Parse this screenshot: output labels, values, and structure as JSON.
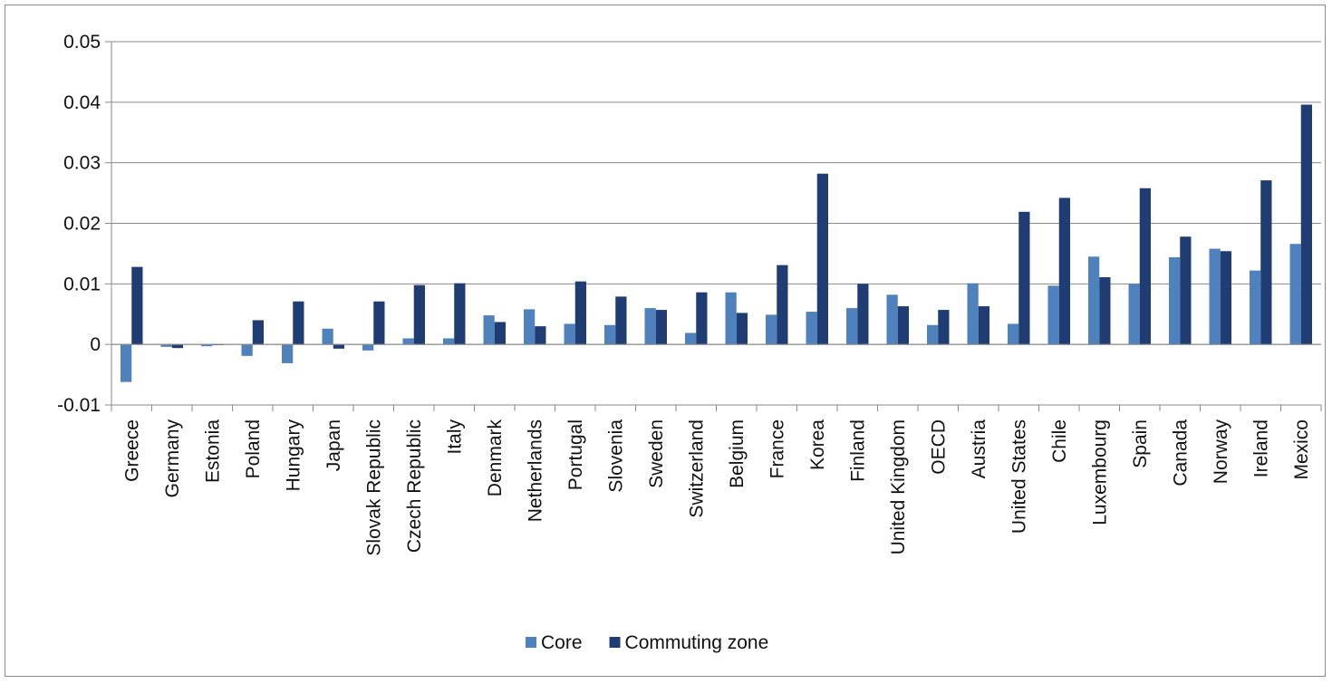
{
  "chart_data": {
    "type": "bar",
    "title": "",
    "xlabel": "",
    "ylabel": "",
    "ylim": [
      -0.01,
      0.05
    ],
    "yticks": [
      "0.05",
      "0.04",
      "0.03",
      "0.02",
      "0.01",
      "0",
      "-0.01"
    ],
    "ytick_values": [
      0.05,
      0.04,
      0.03,
      0.02,
      0.01,
      0,
      -0.01
    ],
    "grid": true,
    "legend_position": "bottom",
    "categories": [
      "Greece",
      "Germany",
      "Estonia",
      "Poland",
      "Hungary",
      "Japan",
      "Slovak Republic",
      "Czech Republic",
      "Italy",
      "Denmark",
      "Netherlands",
      "Portugal",
      "Slovenia",
      "Sweden",
      "Switzerland",
      "Belgium",
      "France",
      "Korea",
      "Finland",
      "United Kingdom",
      "OECD",
      "Austria",
      "United States",
      "Chile",
      "Luxembourg",
      "Spain",
      "Canada",
      "Norway",
      "Ireland",
      "Mexico"
    ],
    "series": [
      {
        "name": "Core",
        "color": "#4f81bd",
        "values": [
          -0.0062,
          -0.0004,
          -0.0003,
          -0.0019,
          -0.0031,
          0.0026,
          -0.001,
          0.001,
          0.001,
          0.0048,
          0.0058,
          0.0034,
          0.0032,
          0.006,
          0.0019,
          0.0086,
          0.0049,
          0.0054,
          0.006,
          0.0082,
          0.0032,
          0.0101,
          0.0034,
          0.0097,
          0.0145,
          0.01,
          0.0144,
          0.0158,
          0.0122,
          0.0166
        ]
      },
      {
        "name": "Commuting zone",
        "color": "#1f3d73",
        "values": [
          0.0128,
          -0.0006,
          -0.0001,
          0.004,
          0.0071,
          -0.0007,
          0.0071,
          0.0098,
          0.0101,
          0.0037,
          0.003,
          0.0104,
          0.0079,
          0.0057,
          0.0086,
          0.0052,
          0.0131,
          0.0282,
          0.01,
          0.0063,
          0.0057,
          0.0063,
          0.0219,
          0.0242,
          0.0111,
          0.0258,
          0.0178,
          0.0154,
          0.0271,
          0.0396
        ]
      }
    ]
  }
}
